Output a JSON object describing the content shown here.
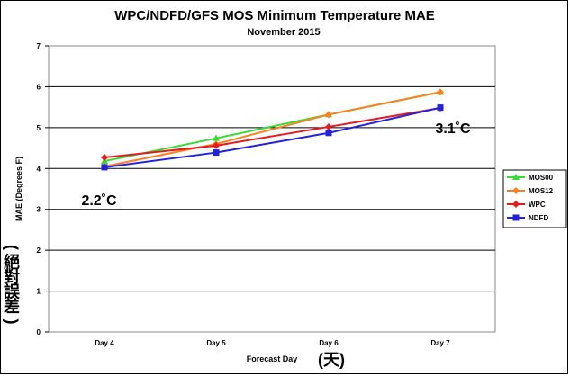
{
  "chart_data": {
    "type": "line",
    "title": "WPC/NDFD/GFS  MOS Minimum Temperature MAE",
    "subtitle": "November 2015",
    "xlabel": "Forecast Day",
    "ylabel": "MAE (Degrees F)",
    "categories": [
      "Day 4",
      "Day 5",
      "Day 6",
      "Day 7"
    ],
    "ylim": [
      0,
      7
    ],
    "yticks": [
      0,
      1,
      2,
      3,
      4,
      5,
      6,
      7
    ],
    "grid": true,
    "legend_position": "right",
    "series": [
      {
        "name": "MOS00",
        "color": "#33dd33",
        "marker": "triangle",
        "values": [
          4.18,
          4.74,
          5.32,
          5.87
        ]
      },
      {
        "name": "MOS12",
        "color": "#ff7f1e",
        "marker": "diamond",
        "values": [
          4.05,
          4.6,
          5.32,
          5.87
        ]
      },
      {
        "name": "WPC",
        "color": "#e8191e",
        "marker": "diamond",
        "values": [
          4.27,
          4.56,
          5.02,
          5.48
        ]
      },
      {
        "name": "NDFD",
        "color": "#2222dd",
        "marker": "square",
        "values": [
          4.03,
          4.39,
          4.87,
          5.49
        ]
      }
    ],
    "annotations": [
      {
        "text": "2.2˚C"
      },
      {
        "text": "3.1˚C"
      }
    ],
    "xlabel_extra": "(天)",
    "ylabel_extra": [
      "(",
      "絕",
      "對",
      "誤",
      "差",
      ")"
    ]
  }
}
